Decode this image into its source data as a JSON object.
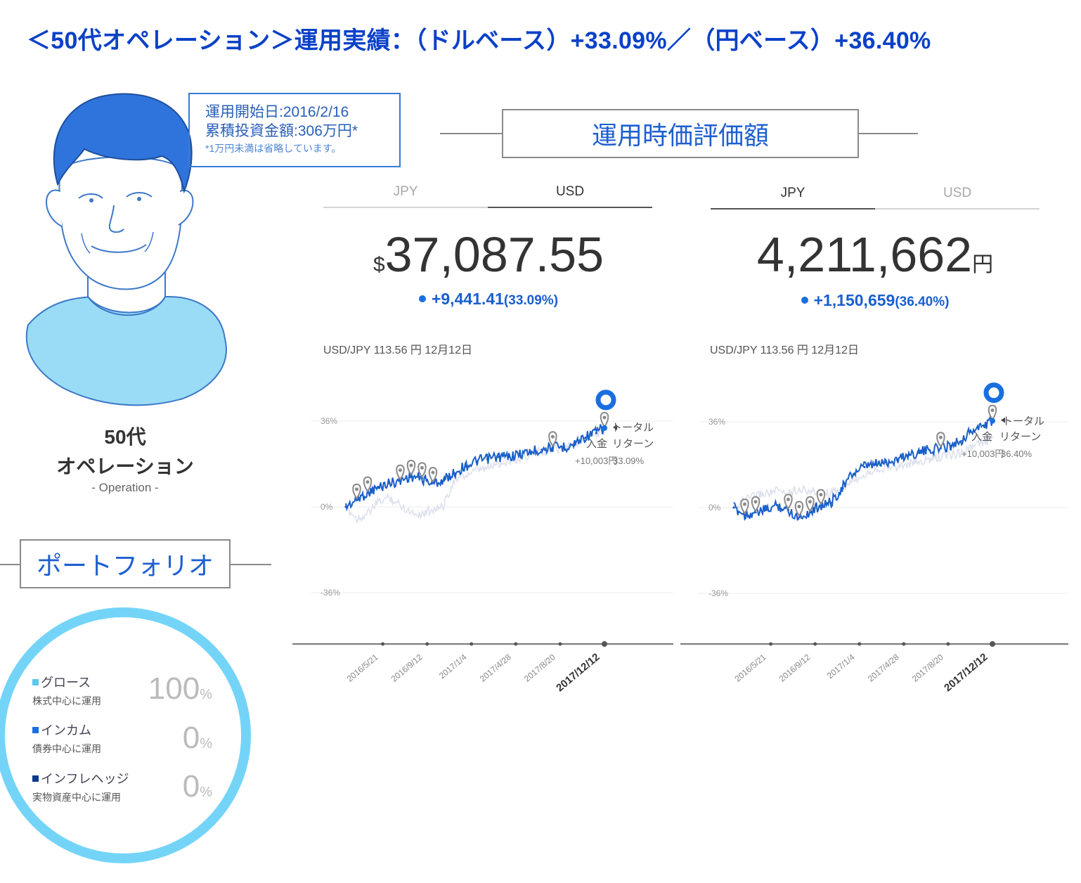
{
  "headline": "＜50代オペレーション＞運用実績：（ドルベース）+33.09%／（円ベース）+36.40%",
  "start_box": {
    "line1": "運用開始日:2016/2/16",
    "line2": "累積投資金額:306万円*",
    "note": "*1万円未満は省略しています。"
  },
  "section_title": "運用時価評価額",
  "portfolio_title": "ポートフォリオ",
  "persona": {
    "age": "50代",
    "name": "オペレーション",
    "en": "- Operation -"
  },
  "panels": [
    {
      "tabs": [
        {
          "label": "JPY",
          "active": false
        },
        {
          "label": "USD",
          "active": true
        }
      ],
      "currency_prefix": "$",
      "value": "37,087.55",
      "currency_suffix": "",
      "change": "+9,441.41",
      "change_pct": "(33.09%)",
      "rate": "USD/JPY 113.56 円 12月12日",
      "legend_total": "トータル",
      "legend_deposit": "入金",
      "legend_return": "リターン",
      "legend_value1": "+10,003円",
      "legend_value2": "33.09%"
    },
    {
      "tabs": [
        {
          "label": "JPY",
          "active": true
        },
        {
          "label": "USD",
          "active": false
        }
      ],
      "currency_prefix": "",
      "value": "4,211,662",
      "currency_suffix": "円",
      "change": "+1,150,659",
      "change_pct": "(36.40%)",
      "rate": "USD/JPY 113.56 円 12月12日",
      "legend_total": "トータル",
      "legend_deposit": "入金",
      "legend_return": "リターン",
      "legend_value1": "+10,003円",
      "legend_value2": "36.40%"
    }
  ],
  "portfolio": [
    {
      "name": "グロース",
      "sub": "株式中心に運用",
      "value": "100",
      "unit": "%",
      "color": "#5bc8ee"
    },
    {
      "name": "インカム",
      "sub": "債券中心に運用",
      "value": "0",
      "unit": "%",
      "color": "#1a6fe0"
    },
    {
      "name": "インフレヘッジ",
      "sub": "実物資産中心に運用",
      "value": "0",
      "unit": "%",
      "color": "#0b3a8a"
    }
  ],
  "colors": {
    "headline": "#0a41c8",
    "series": "#1a5fc8",
    "benchmark": "#dfe3ee",
    "ring": "#74d4f8",
    "shirt": "#9adcf6",
    "hair": "#2f74dc"
  },
  "chart_data": [
    {
      "type": "line",
      "title": "",
      "ylabel": "",
      "y_ticks": [
        "36%",
        "0%",
        "-36%"
      ],
      "ylim": [
        -36,
        36
      ],
      "x_ticks": [
        "2016/5/21",
        "2016/9/12",
        "2017/1/4",
        "2017/4/28",
        "2017/8/20",
        "2017/12/12"
      ],
      "x": [
        "2016/2/16",
        "2016/3/15",
        "2016/4/12",
        "2016/5/10",
        "2016/6/7",
        "2016/7/5",
        "2016/8/2",
        "2016/8/30",
        "2016/9/27",
        "2016/10/25",
        "2016/11/22",
        "2016/12/20",
        "2017/1/17",
        "2017/2/14",
        "2017/3/14",
        "2017/4/11",
        "2017/5/9",
        "2017/6/6",
        "2017/7/4",
        "2017/8/1",
        "2017/8/29",
        "2017/9/26",
        "2017/10/24",
        "2017/11/21",
        "2017/12/12"
      ],
      "series": [
        {
          "values": [
            0,
            3,
            6,
            8,
            10,
            11,
            13,
            12,
            10,
            11,
            14,
            17,
            19,
            20,
            21,
            21,
            22,
            23,
            24,
            25,
            25,
            26,
            29,
            31,
            33.09
          ]
        },
        {
          "values": [
            0,
            -5,
            -3,
            2,
            4,
            1,
            -2,
            -3,
            -1,
            0,
            11,
            13,
            15,
            16,
            18,
            19,
            20,
            22,
            23,
            24,
            25,
            26,
            28,
            30,
            32
          ]
        }
      ],
      "annotation": "33.09%"
    },
    {
      "type": "line",
      "title": "",
      "ylabel": "",
      "y_ticks": [
        "36%",
        "0%",
        "-36%"
      ],
      "ylim": [
        -36,
        36
      ],
      "x_ticks": [
        "2016/5/21",
        "2016/9/12",
        "2017/1/4",
        "2017/4/28",
        "2017/8/20",
        "2017/12/12"
      ],
      "x": [
        "2016/2/16",
        "2016/3/15",
        "2016/4/12",
        "2016/5/10",
        "2016/6/7",
        "2016/7/5",
        "2016/8/2",
        "2016/8/30",
        "2016/9/27",
        "2016/10/25",
        "2016/11/22",
        "2016/12/20",
        "2017/1/17",
        "2017/2/14",
        "2017/3/14",
        "2017/4/11",
        "2017/5/9",
        "2017/6/6",
        "2017/7/4",
        "2017/8/1",
        "2017/8/29",
        "2017/9/26",
        "2017/10/24",
        "2017/11/21",
        "2017/12/12"
      ],
      "series": [
        {
          "values": [
            0,
            -3,
            -2,
            -1,
            1,
            -1,
            -4,
            -2,
            1,
            2,
            8,
            14,
            17,
            18,
            19,
            20,
            22,
            23,
            24,
            25,
            26,
            28,
            32,
            34,
            36.4
          ]
        },
        {
          "values": [
            0,
            3,
            5,
            6,
            7,
            6,
            8,
            7,
            6,
            6,
            8,
            11,
            14,
            16,
            17,
            17,
            18,
            19,
            20,
            21,
            22,
            23,
            25,
            27,
            29
          ]
        }
      ],
      "annotation": "36.40%"
    }
  ]
}
